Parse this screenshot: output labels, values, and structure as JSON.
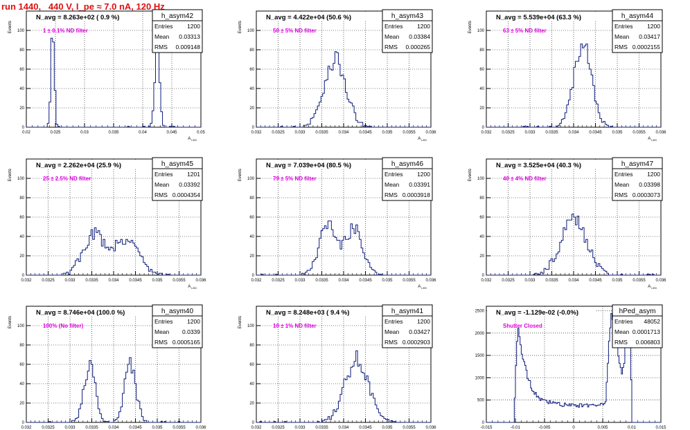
{
  "canvas": {
    "run_title": "run 1440,   440 V, I_pe ≈ 7.0 nA, 120 Hz"
  },
  "colors": {
    "hist_line": "#0c1a7a",
    "nd_text": "#e000e0",
    "run_text": "#e01010",
    "grid": "#000000"
  },
  "chart_data": [
    {
      "type": "histogram",
      "name": "h_asym42",
      "n_avg_text": "N_avg = 8.263e+02 ( 0.9 %)",
      "filter_text": "1 ± 0.1% ND filter",
      "stats": [
        {
          "label": "Entries",
          "value": "1200"
        },
        {
          "label": "Mean",
          "value": "0.03313"
        },
        {
          "label": "RMS",
          "value": "0.009148"
        }
      ],
      "xlabel": "A_LED",
      "ylabel": "Events",
      "xlim": [
        0.02,
        0.05
      ],
      "ylim": [
        0,
        120
      ],
      "xticks": [
        "0.02",
        "0.025",
        "0.03",
        "0.035",
        "0.04",
        "0.045",
        "0.05"
      ],
      "yticks": [
        "0",
        "20",
        "40",
        "60",
        "80",
        "100"
      ],
      "peaks": [
        {
          "center": 0.0245,
          "sigma": 0.0003,
          "height": 98
        },
        {
          "center": 0.0425,
          "sigma": 0.0004,
          "height": 96
        }
      ]
    },
    {
      "type": "histogram",
      "name": "h_asym43",
      "n_avg_text": "N_avg = 4.422e+04 (50.6 %)",
      "filter_text": "50 ± 5% ND filter",
      "stats": [
        {
          "label": "Entries",
          "value": "1200"
        },
        {
          "label": "Mean",
          "value": "0.03384"
        },
        {
          "label": "RMS",
          "value": "0.000265"
        }
      ],
      "xlabel": "A_LED",
      "ylabel": "Events",
      "xlim": [
        0.032,
        0.036
      ],
      "ylim": [
        0,
        120
      ],
      "xticks": [
        "0.032",
        "0.0325",
        "0.033",
        "0.0335",
        "0.034",
        "0.0345",
        "0.035",
        "0.0355",
        "0.036"
      ],
      "yticks": [
        "0",
        "20",
        "40",
        "60",
        "80",
        "100"
      ],
      "peaks": [
        {
          "center": 0.0338,
          "sigma": 0.00025,
          "height": 70
        }
      ]
    },
    {
      "type": "histogram",
      "name": "h_asym44",
      "n_avg_text": "N_avg = 5.539e+04 (63.3 %)",
      "filter_text": "63 ± 5% ND filter",
      "stats": [
        {
          "label": "Entries",
          "value": "1200"
        },
        {
          "label": "Mean",
          "value": "0.03417"
        },
        {
          "label": "RMS",
          "value": "0.0002155"
        }
      ],
      "xlabel": "A_LED",
      "ylabel": "Events",
      "xlim": [
        0.032,
        0.036
      ],
      "ylim": [
        0,
        120
      ],
      "xticks": [
        "0.032",
        "0.0325",
        "0.033",
        "0.0335",
        "0.034",
        "0.0345",
        "0.035",
        "0.0355",
        "0.036"
      ],
      "yticks": [
        "0",
        "20",
        "40",
        "60",
        "80",
        "100"
      ],
      "peaks": [
        {
          "center": 0.0342,
          "sigma": 0.0002,
          "height": 87
        }
      ]
    },
    {
      "type": "histogram",
      "name": "h_asym45",
      "n_avg_text": "N_avg = 2.262e+04 (25.9 %)",
      "filter_text": "25 ± 2.5% ND filter",
      "stats": [
        {
          "label": "Entries",
          "value": "1201"
        },
        {
          "label": "Mean",
          "value": "0.03392"
        },
        {
          "label": "RMS",
          "value": "0.0004354"
        }
      ],
      "xlabel": "A_LED",
      "ylabel": "Events",
      "xlim": [
        0.032,
        0.036
      ],
      "ylim": [
        0,
        120
      ],
      "xticks": [
        "0.032",
        "0.0325",
        "0.033",
        "0.0335",
        "0.034",
        "0.0345",
        "0.035",
        "0.0355",
        "0.036"
      ],
      "yticks": [
        "0",
        "20",
        "40",
        "60",
        "80",
        "100"
      ],
      "peaks": [
        {
          "center": 0.03355,
          "sigma": 0.00025,
          "height": 42
        },
        {
          "center": 0.0343,
          "sigma": 0.00028,
          "height": 38
        }
      ]
    },
    {
      "type": "histogram",
      "name": "h_asym46",
      "n_avg_text": "N_avg = 7.039e+04 (80.5 %)",
      "filter_text": "79 ± 5% ND filter",
      "stats": [
        {
          "label": "Entries",
          "value": "1200"
        },
        {
          "label": "Mean",
          "value": "0.03391"
        },
        {
          "label": "RMS",
          "value": "0.0003918"
        }
      ],
      "xlabel": "A_LED",
      "ylabel": "Events",
      "xlim": [
        0.032,
        0.036
      ],
      "ylim": [
        0,
        120
      ],
      "xticks": [
        "0.032",
        "0.0325",
        "0.033",
        "0.0335",
        "0.034",
        "0.0345",
        "0.035",
        "0.0355",
        "0.036"
      ],
      "yticks": [
        "0",
        "20",
        "40",
        "60",
        "80",
        "100"
      ],
      "peaks": [
        {
          "center": 0.03365,
          "sigma": 0.0002,
          "height": 52
        },
        {
          "center": 0.03425,
          "sigma": 0.0002,
          "height": 48
        }
      ]
    },
    {
      "type": "histogram",
      "name": "h_asym47",
      "n_avg_text": "N_avg = 3.525e+04 (40.3 %)",
      "filter_text": "40 ± 4% ND filter",
      "stats": [
        {
          "label": "Entries",
          "value": "1200"
        },
        {
          "label": "Mean",
          "value": "0.03398"
        },
        {
          "label": "RMS",
          "value": "0.0003073"
        }
      ],
      "xlabel": "A_LED",
      "ylabel": "Events",
      "xlim": [
        0.032,
        0.036
      ],
      "ylim": [
        0,
        120
      ],
      "xticks": [
        "0.032",
        "0.0325",
        "0.033",
        "0.0335",
        "0.034",
        "0.0345",
        "0.035",
        "0.0355",
        "0.036"
      ],
      "yticks": [
        "0",
        "20",
        "40",
        "60",
        "80",
        "100"
      ],
      "peaks": [
        {
          "center": 0.034,
          "sigma": 0.0003,
          "height": 58
        }
      ]
    },
    {
      "type": "histogram",
      "name": "h_asym40",
      "n_avg_text": "N_avg = 8.746e+04 (100.0 %)",
      "filter_text": "100% (No filter)",
      "stats": [
        {
          "label": "Entries",
          "value": "1200"
        },
        {
          "label": "Mean",
          "value": "0.0339"
        },
        {
          "label": "RMS",
          "value": "0.0005165"
        }
      ],
      "xlabel": "A_LED",
      "ylabel": "Events",
      "xlim": [
        0.032,
        0.036
      ],
      "ylim": [
        0,
        120
      ],
      "xticks": [
        "0.032",
        "0.0325",
        "0.033",
        "0.0335",
        "0.034",
        "0.0345",
        "0.035",
        "0.0355",
        "0.036"
      ],
      "yticks": [
        "0",
        "20",
        "40",
        "60",
        "80",
        "100"
      ],
      "peaks": [
        {
          "center": 0.03345,
          "sigma": 0.00013,
          "height": 58
        },
        {
          "center": 0.03438,
          "sigma": 0.00013,
          "height": 60
        }
      ]
    },
    {
      "type": "histogram",
      "name": "h_asym41",
      "n_avg_text": "N_avg = 8.248e+03 ( 9.4 %)",
      "filter_text": "10 ± 1% ND filter",
      "stats": [
        {
          "label": "Entries",
          "value": "1200"
        },
        {
          "label": "Mean",
          "value": "0.03427"
        },
        {
          "label": "RMS",
          "value": "0.0002903"
        }
      ],
      "xlabel": "A_LED",
      "ylabel": "Events",
      "xlim": [
        0.032,
        0.036
      ],
      "ylim": [
        0,
        120
      ],
      "xticks": [
        "0.032",
        "0.0325",
        "0.033",
        "0.0335",
        "0.034",
        "0.0345",
        "0.035",
        "0.0355",
        "0.036"
      ],
      "yticks": [
        "0",
        "20",
        "40",
        "60",
        "80",
        "100"
      ],
      "peaks": [
        {
          "center": 0.0343,
          "sigma": 0.00027,
          "height": 66
        }
      ]
    },
    {
      "type": "histogram",
      "name": "hPed_asym",
      "n_avg_text": "N_avg = -1.129e-02 (-0.0%)",
      "filter_text": "Shutter Closed",
      "stats": [
        {
          "label": "Entries",
          "value": "48052"
        },
        {
          "label": "Mean",
          "value": "0.0001713"
        },
        {
          "label": "RMS",
          "value": "0.006803"
        }
      ],
      "xlabel": "",
      "ylabel": "",
      "xlim": [
        -0.015,
        0.015
      ],
      "ylim": [
        0,
        2600
      ],
      "xticks": [
        "-0.015",
        "-0.01",
        "-0.005",
        "0",
        "0.005",
        "0.01",
        "0.015"
      ],
      "yticks": [
        "0",
        "500",
        "1000",
        "1500",
        "2000",
        "2500"
      ],
      "profile": [
        [
          -0.0102,
          200
        ],
        [
          -0.0097,
          1900
        ],
        [
          -0.0094,
          2100
        ],
        [
          -0.009,
          1600
        ],
        [
          -0.0085,
          1300
        ],
        [
          -0.0078,
          1000
        ],
        [
          -0.007,
          700
        ],
        [
          -0.006,
          540
        ],
        [
          -0.005,
          470
        ],
        [
          -0.004,
          440
        ],
        [
          -0.003,
          430
        ],
        [
          -0.002,
          400
        ],
        [
          -0.001,
          390
        ],
        [
          0.0,
          380
        ],
        [
          0.001,
          380
        ],
        [
          0.002,
          390
        ],
        [
          0.003,
          380
        ],
        [
          0.004,
          400
        ],
        [
          0.005,
          420
        ],
        [
          0.0055,
          500
        ],
        [
          0.006,
          1600
        ],
        [
          0.0065,
          2400
        ],
        [
          0.0072,
          2000
        ],
        [
          0.0078,
          1300
        ],
        [
          0.0083,
          1150
        ],
        [
          0.0088,
          1450
        ],
        [
          0.0093,
          2400
        ],
        [
          0.0097,
          2000
        ],
        [
          0.01,
          400
        ]
      ]
    }
  ]
}
